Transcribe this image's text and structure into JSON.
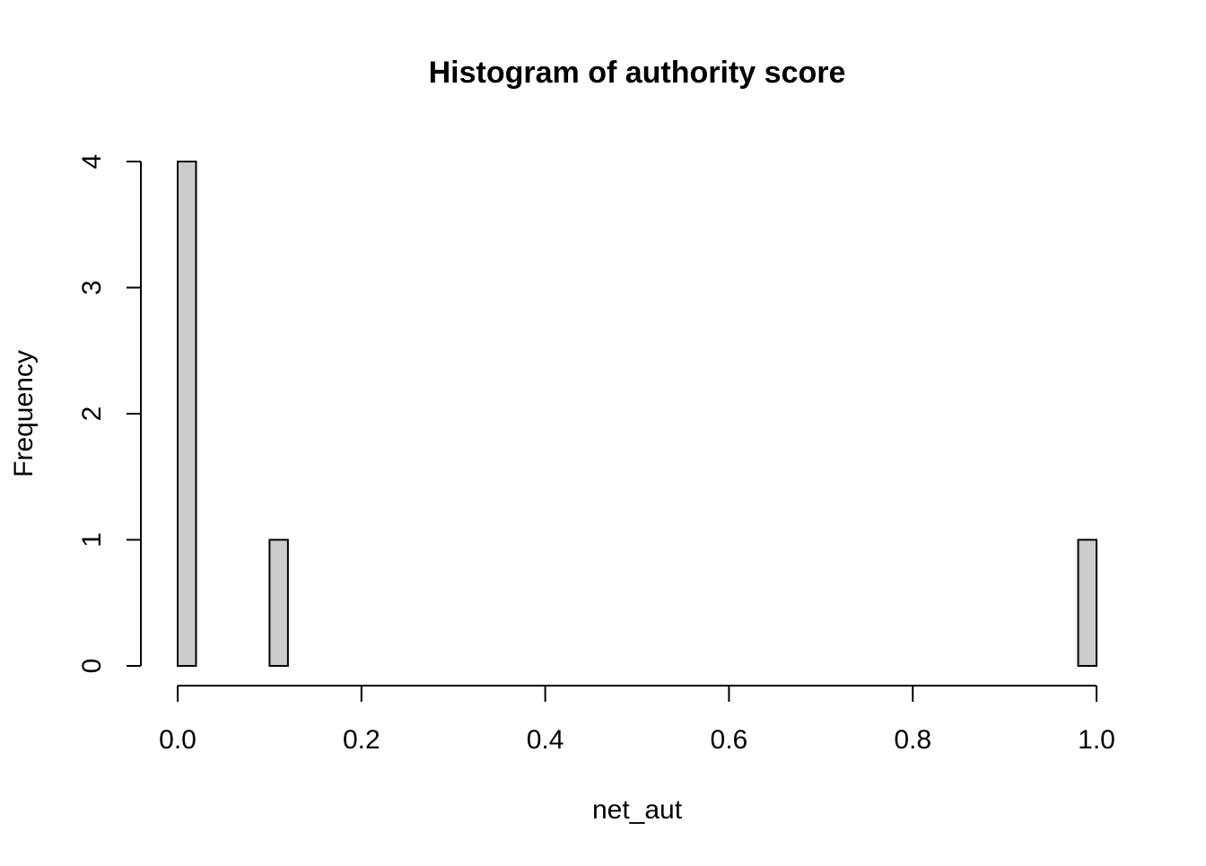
{
  "chart_data": {
    "type": "bar",
    "title": "Histogram of authority score",
    "xlabel": "net_aut",
    "ylabel": "Frequency",
    "xlim": [
      0,
      1
    ],
    "ylim": [
      0,
      4
    ],
    "bin_width": 0.02,
    "x_ticks": [
      "0.0",
      "0.2",
      "0.4",
      "0.6",
      "0.8",
      "1.0"
    ],
    "y_ticks": [
      "0",
      "1",
      "2",
      "3",
      "4"
    ],
    "bins": [
      {
        "start": 0.0,
        "end": 0.02,
        "count": 4
      },
      {
        "start": 0.1,
        "end": 0.12,
        "count": 1
      },
      {
        "start": 0.98,
        "end": 1.0,
        "count": 1
      }
    ],
    "bar_color": "#cccccc",
    "grid": false,
    "legend": "none"
  }
}
